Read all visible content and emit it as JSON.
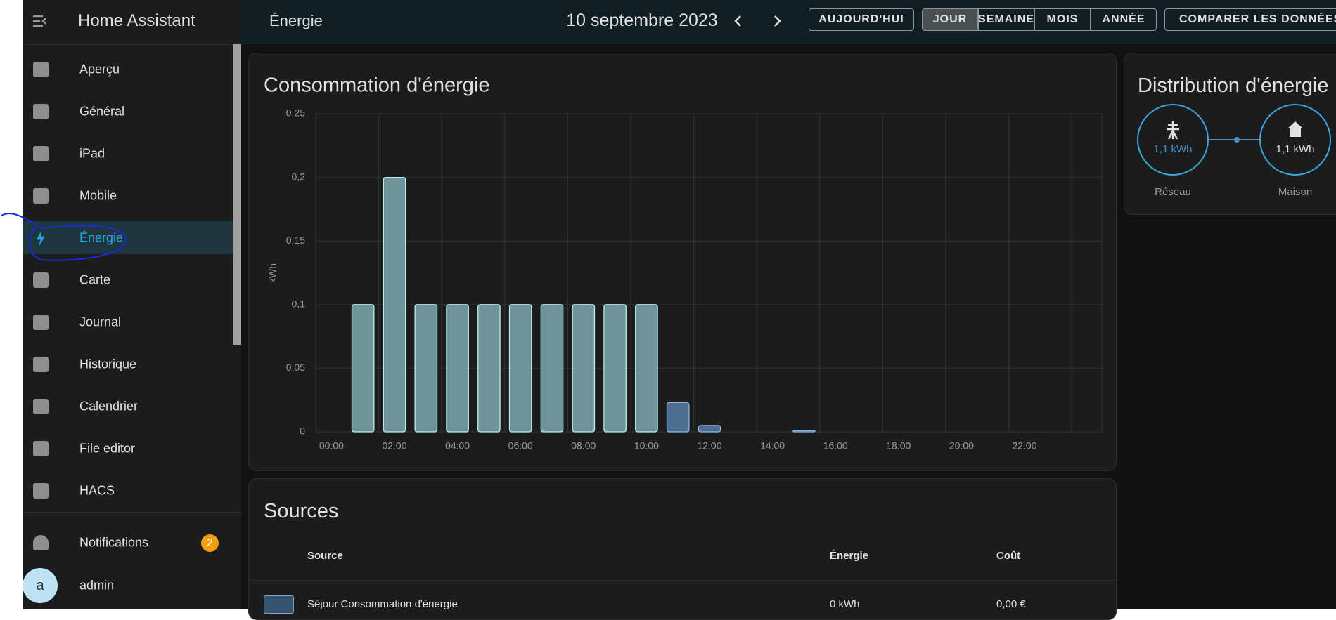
{
  "sidebar": {
    "title": "Home Assistant",
    "items": [
      "Aperçu",
      "Général",
      "iPad",
      "Mobile",
      "Énergie",
      "Carte",
      "Journal",
      "Historique",
      "Calendrier",
      "File editor",
      "HACS"
    ],
    "notifications": {
      "label": "Notifications",
      "count": 2
    },
    "user": {
      "initial": "a",
      "name": "admin"
    }
  },
  "toolbar": {
    "title": "Énergie",
    "date": "10 septembre 2023",
    "today": "AUJOURD'HUI",
    "periods": [
      "JOUR",
      "SEMAINE",
      "MOIS",
      "ANNÉE"
    ],
    "compare": "COMPARER LES DONNÉES"
  },
  "chart_data": {
    "type": "bar",
    "title": "Consommation d'énergie",
    "y_label": "kWh",
    "categories": [
      "00:00",
      null,
      "02:00",
      null,
      "04:00",
      null,
      "06:00",
      null,
      "08:00",
      null,
      "10:00",
      null,
      "12:00",
      null,
      "14:00",
      null,
      "16:00",
      null,
      "18:00",
      null,
      "20:00",
      null,
      "22:00",
      null
    ],
    "values": [
      0,
      0.1,
      0.2,
      0.1,
      0.1,
      0.1,
      0.1,
      0.1,
      0.1,
      0.1,
      0.1,
      0.023,
      0.005,
      0,
      0,
      0.001,
      0,
      0,
      0,
      0,
      0,
      0,
      0,
      0
    ],
    "colors": [
      "#6f9499",
      "#6f9499",
      "#6f9499",
      "#6f9499",
      "#6f9499",
      "#6f9499",
      "#6f9499",
      "#6f9499",
      "#6f9499",
      "#6f9499",
      "#6f9499",
      "#4c6d90",
      "#4c6d90",
      "#4c6d90",
      "#4c6d90",
      "#4c6d90",
      "#4c6d90",
      "#4c6d90",
      "#4c6d90",
      "#4c6d90",
      "#4c6d90",
      "#4c6d90",
      "#4c6d90",
      "#4c6d90"
    ],
    "ylim": [
      0,
      0.25
    ],
    "yticks": [
      0,
      {
        "value": 0.05,
        "label": "0,05"
      },
      {
        "value": 0.1,
        "label": "0,1"
      },
      {
        "value": 0.15,
        "label": "0,15"
      },
      {
        "value": 0.2,
        "label": "0,2"
      },
      {
        "value": 0.25,
        "label": "0,25"
      }
    ],
    "grid": true
  },
  "distribution": {
    "title": "Distribution d'énergie",
    "grid": {
      "value": "1,1 kWh",
      "label": "Réseau"
    },
    "home": {
      "value": "1,1 kWh",
      "label": "Maison"
    }
  },
  "sources": {
    "title": "Sources",
    "headers": [
      "Source",
      "Énergie",
      "Coût"
    ],
    "rows": [
      [
        "Séjour Consommation d'énergie",
        "0 kWh",
        "0,00 €"
      ]
    ]
  }
}
